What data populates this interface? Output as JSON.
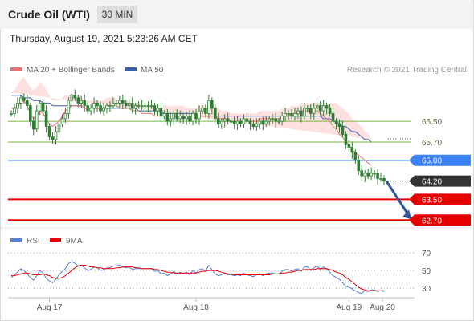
{
  "header": {
    "instrument": "Crude Oil (WTI)",
    "interval": "30 MIN",
    "datetime": "Thursday, August 19, 2021 5:23:26 AM CET"
  },
  "legend": {
    "ma20": "MA 20 + Bollinger Bands",
    "ma50": "MA 50",
    "credit": "Research © 2021 Trading Central",
    "rsi": "RSI",
    "rsi_ma": "9MA"
  },
  "colors": {
    "candle": "#2e7d32",
    "ma20": "#e57373",
    "ma50": "#3b5ea8",
    "bollinger_fill": "#fde0e0",
    "resistance": "#7cb342",
    "pivot": "#3b82f6",
    "support": "#e60000",
    "arrow": "#2f5597",
    "rsi": "#5b7fd6",
    "rsi_ma": "#e60000"
  },
  "chart_data": [
    {
      "type": "candlestick",
      "name": "price",
      "x_ticks": [
        "Aug 17",
        "Aug 18",
        "Aug 19",
        "Aug 20"
      ],
      "ylim": [
        62.4,
        68.2
      ],
      "last_price": 64.2,
      "levels": [
        {
          "value": 66.5,
          "label": "66.50",
          "kind": "resistance"
        },
        {
          "value": 65.7,
          "label": "65.70",
          "kind": "resistance"
        },
        {
          "value": 65.0,
          "label": "65.00",
          "kind": "pivot"
        },
        {
          "value": 64.2,
          "label": "64.20",
          "kind": "last"
        },
        {
          "value": 63.5,
          "label": "63.50",
          "kind": "support"
        },
        {
          "value": 62.7,
          "label": "62.70",
          "kind": "support"
        }
      ],
      "close": [
        66.8,
        67.0,
        67.2,
        67.4,
        67.3,
        67.1,
        66.5,
        66.2,
        66.9,
        67.2,
        66.9,
        66.3,
        65.9,
        65.8,
        66.1,
        66.4,
        66.6,
        66.8,
        67.3,
        67.5,
        67.4,
        67.2,
        67.3,
        67.1,
        66.9,
        67.0,
        67.2,
        67.1,
        66.9,
        67.0,
        67.1,
        67.1,
        67.2,
        67.2,
        67.3,
        67.2,
        67.1,
        67.2,
        67.0,
        67.1,
        67.1,
        67.1,
        67.1,
        67.1,
        67.1,
        66.9,
        67.0,
        66.7,
        66.8,
        66.5,
        66.6,
        66.8,
        66.6,
        66.7,
        66.6,
        66.7,
        66.5,
        66.8,
        66.6,
        66.9,
        67.0,
        66.8,
        67.3,
        67.0,
        66.6,
        66.4,
        66.5,
        66.6,
        66.5,
        66.5,
        66.4,
        66.5,
        66.4,
        66.6,
        66.5,
        66.4,
        66.3,
        66.4,
        66.5,
        66.4,
        66.5,
        66.6,
        66.6,
        66.5,
        66.5,
        66.7,
        66.8,
        66.8,
        66.7,
        66.8,
        66.9,
        66.7,
        67.0,
        67.0,
        66.8,
        67.0,
        67.1,
        66.9,
        67.1,
        67.0,
        66.8,
        66.5,
        66.4,
        66.3,
        66.0,
        65.6,
        65.5,
        65.3,
        65.0,
        64.6,
        64.4,
        64.5,
        64.4,
        64.5,
        64.5,
        64.3,
        64.3,
        64.2
      ],
      "ma20": [
        67.0,
        67.0,
        67.1,
        67.2,
        67.3,
        67.1,
        66.8,
        66.6,
        66.7,
        66.9,
        66.8,
        66.6,
        66.4,
        66.3,
        66.4,
        66.5,
        66.7,
        66.9,
        67.0,
        67.1,
        67.1,
        67.1,
        67.1,
        67.0,
        67.0,
        67.0,
        67.0,
        67.0,
        67.0,
        67.0,
        67.1,
        67.1,
        67.1,
        67.1,
        67.0,
        67.0,
        67.0,
        67.0,
        66.9,
        66.9,
        66.9,
        66.8,
        66.8,
        66.8,
        66.8,
        66.7,
        66.7,
        66.7,
        66.7,
        66.7,
        66.7,
        66.7,
        66.7,
        66.7,
        66.7,
        66.6,
        66.6,
        66.6,
        66.6,
        66.7,
        66.7,
        66.7,
        66.7,
        66.7,
        66.7,
        66.6,
        66.6,
        66.6,
        66.6,
        66.5,
        66.5,
        66.5,
        66.5,
        66.5,
        66.5,
        66.5,
        66.5,
        66.5,
        66.6,
        66.6,
        66.6,
        66.6,
        66.6,
        66.6,
        66.6,
        66.7,
        66.7,
        66.7,
        66.8,
        66.8,
        66.8,
        66.9,
        66.9,
        66.9,
        66.9,
        66.9,
        66.9,
        66.8,
        66.7,
        66.6,
        66.5,
        66.3,
        66.2,
        66.0,
        65.9,
        65.7,
        65.6,
        65.4,
        65.3,
        65.2,
        65.1,
        65.0,
        64.9,
        64.8
      ],
      "ma50": [
        67.5,
        67.5,
        67.5,
        67.5,
        67.4,
        67.4,
        67.4,
        67.3,
        67.3,
        67.3,
        67.2,
        67.2,
        67.2,
        67.1,
        67.1,
        67.1,
        67.1,
        67.1,
        67.1,
        67.1,
        67.1,
        67.1,
        67.1,
        67.0,
        67.0,
        67.0,
        67.0,
        67.0,
        67.0,
        67.0,
        67.0,
        67.0,
        67.0,
        67.0,
        67.0,
        67.0,
        67.0,
        67.0,
        67.0,
        67.0,
        66.9,
        66.9,
        66.9,
        66.9,
        66.9,
        66.9,
        66.9,
        66.9,
        66.8,
        66.8,
        66.8,
        66.8,
        66.8,
        66.8,
        66.8,
        66.8,
        66.8,
        66.8,
        66.7,
        66.7,
        66.7,
        66.7,
        66.7,
        66.7,
        66.7,
        66.7,
        66.7,
        66.7,
        66.7,
        66.7,
        66.7,
        66.7,
        66.7,
        66.7,
        66.7,
        66.7,
        66.7,
        66.7,
        66.7,
        66.7,
        66.7,
        66.7,
        66.7,
        66.7,
        66.7,
        66.7,
        66.7,
        66.7,
        66.7,
        66.7,
        66.7,
        66.7,
        66.7,
        66.7,
        66.7,
        66.7,
        66.7,
        66.7,
        66.6,
        66.6,
        66.6,
        66.5,
        66.5,
        66.4,
        66.3,
        66.3,
        66.2,
        66.1,
        66.1,
        66.0,
        65.9,
        65.8,
        65.8,
        65.7
      ],
      "bollinger_width": [
        0.6,
        0.7,
        0.8,
        0.9,
        0.9,
        0.9,
        1.0,
        1.1,
        1.1,
        1.1,
        1.1,
        1.1,
        1.1,
        1.0,
        0.9,
        0.8,
        0.7,
        0.6,
        0.5,
        0.5,
        0.4,
        0.4,
        0.3,
        0.3,
        0.3,
        0.3,
        0.3,
        0.3,
        0.3,
        0.3,
        0.3,
        0.3,
        0.3,
        0.3,
        0.3,
        0.3,
        0.3,
        0.3,
        0.3,
        0.3,
        0.3,
        0.3,
        0.3,
        0.3,
        0.3,
        0.3,
        0.3,
        0.3,
        0.4,
        0.4,
        0.4,
        0.4,
        0.4,
        0.4,
        0.4,
        0.4,
        0.4,
        0.4,
        0.4,
        0.4,
        0.4,
        0.4,
        0.4,
        0.4,
        0.4,
        0.4,
        0.3,
        0.3,
        0.3,
        0.3,
        0.3,
        0.3,
        0.3,
        0.3,
        0.3,
        0.3,
        0.3,
        0.3,
        0.3,
        0.3,
        0.3,
        0.3,
        0.3,
        0.3,
        0.3,
        0.3,
        0.3,
        0.3,
        0.3,
        0.3,
        0.3,
        0.3,
        0.3,
        0.3,
        0.3,
        0.3,
        0.3,
        0.4,
        0.5,
        0.6,
        0.7,
        0.9,
        1.0,
        1.1,
        1.1,
        1.2,
        1.2,
        1.2,
        1.2,
        1.2,
        1.2,
        1.1,
        1.1,
        1.0
      ]
    },
    {
      "type": "line",
      "name": "rsi",
      "ylim": [
        20,
        80
      ],
      "y_ticks": [
        70,
        50,
        30
      ],
      "rsi": [
        42,
        45,
        48,
        52,
        50,
        46,
        42,
        39,
        44,
        50,
        47,
        41,
        38,
        36,
        40,
        45,
        49,
        52,
        58,
        60,
        58,
        55,
        56,
        53,
        50,
        51,
        54,
        53,
        50,
        51,
        53,
        53,
        55,
        55,
        56,
        54,
        53,
        54,
        51,
        52,
        52,
        52,
        52,
        52,
        52,
        49,
        50,
        46,
        47,
        44,
        46,
        49,
        46,
        48,
        46,
        48,
        45,
        50,
        47,
        51,
        52,
        49,
        56,
        51,
        46,
        44,
        45,
        47,
        45,
        45,
        44,
        45,
        44,
        47,
        45,
        44,
        43,
        45,
        46,
        44,
        46,
        47,
        47,
        46,
        46,
        49,
        51,
        51,
        49,
        51,
        52,
        49,
        54,
        54,
        50,
        53,
        55,
        51,
        54,
        52,
        48,
        44,
        42,
        40,
        36,
        32,
        31,
        29,
        27,
        25,
        24,
        27,
        26,
        28,
        28,
        26,
        27,
        26
      ],
      "rsi_ma": [
        44,
        44,
        45,
        46,
        47,
        47,
        46,
        45,
        45,
        45,
        46,
        45,
        44,
        42,
        41,
        41,
        42,
        44,
        47,
        50,
        53,
        55,
        56,
        56,
        55,
        54,
        54,
        53,
        53,
        52,
        52,
        52,
        52,
        53,
        53,
        54,
        54,
        54,
        54,
        53,
        53,
        52,
        52,
        52,
        52,
        51,
        51,
        50,
        49,
        48,
        48,
        47,
        47,
        47,
        47,
        47,
        47,
        47,
        47,
        48,
        49,
        49,
        50,
        50,
        50,
        49,
        48,
        47,
        46,
        46,
        45,
        45,
        45,
        45,
        45,
        45,
        45,
        45,
        45,
        45,
        45,
        45,
        46,
        46,
        46,
        47,
        47,
        48,
        48,
        49,
        50,
        50,
        51,
        51,
        51,
        51,
        52,
        52,
        52,
        52,
        51,
        50,
        48,
        47,
        45,
        42,
        40,
        37,
        34,
        31,
        29,
        28,
        27,
        27,
        27,
        27,
        27,
        27
      ]
    }
  ]
}
